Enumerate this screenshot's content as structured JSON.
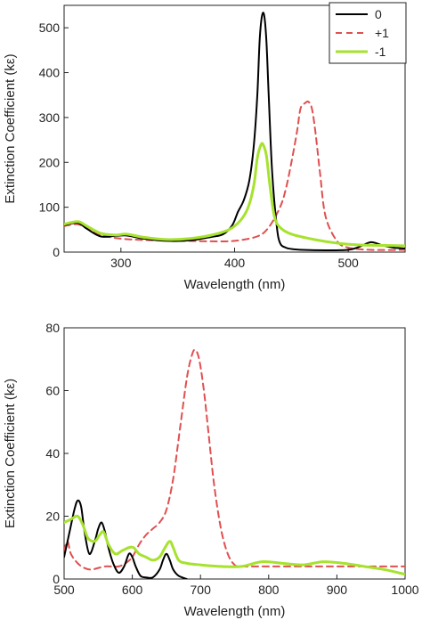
{
  "chart_data": [
    {
      "type": "line",
      "xlabel": "Wavelength (nm)",
      "ylabel": "Extinction Coefficient (kε)",
      "xlim": [
        250,
        550
      ],
      "ylim": [
        0,
        550
      ],
      "xticks": [
        300,
        400,
        500
      ],
      "yticks": [
        0,
        100,
        200,
        300,
        400,
        500
      ],
      "legend": "top-right",
      "grid": false,
      "series": [
        {
          "name": "0",
          "color": "#000000",
          "style": "solid",
          "x": [
            250,
            262,
            270,
            282,
            295,
            305,
            320,
            340,
            360,
            380,
            390,
            398,
            403,
            408,
            413,
            417,
            420,
            422,
            424,
            426,
            428,
            430,
            433,
            437,
            440,
            445,
            450,
            460,
            480,
            500,
            510,
            520,
            530,
            540,
            550
          ],
          "y": [
            60,
            65,
            52,
            35,
            36,
            37,
            30,
            25,
            26,
            34,
            40,
            60,
            90,
            115,
            160,
            240,
            350,
            470,
            525,
            528,
            470,
            350,
            180,
            60,
            20,
            10,
            7,
            5,
            4,
            5,
            12,
            22,
            15,
            10,
            8
          ]
        },
        {
          "name": "+1",
          "color": "#e05050",
          "style": "dashed",
          "x": [
            250,
            262,
            272,
            282,
            300,
            320,
            340,
            360,
            380,
            400,
            420,
            430,
            440,
            445,
            450,
            455,
            458,
            462,
            465,
            468,
            471,
            475,
            480,
            490,
            500,
            520,
            550
          ],
          "y": [
            58,
            62,
            50,
            38,
            30,
            27,
            26,
            25,
            24,
            25,
            35,
            55,
            100,
            140,
            200,
            270,
            320,
            332,
            335,
            320,
            270,
            180,
            80,
            25,
            10,
            5,
            5
          ]
        },
        {
          "name": "-1",
          "color": "#a6e22e",
          "style": "solid",
          "x": [
            250,
            262,
            270,
            282,
            295,
            305,
            320,
            340,
            360,
            380,
            395,
            405,
            412,
            417,
            420,
            423,
            425,
            428,
            431,
            435,
            440,
            450,
            470,
            490,
            510,
            530,
            550
          ],
          "y": [
            62,
            68,
            58,
            42,
            38,
            40,
            33,
            28,
            30,
            38,
            50,
            70,
            100,
            150,
            210,
            238,
            240,
            215,
            150,
            80,
            55,
            40,
            28,
            20,
            16,
            15,
            14
          ]
        }
      ]
    },
    {
      "type": "line",
      "xlabel": "Wavelength (nm)",
      "ylabel": "Extinction Coefficient (kε)",
      "xlim": [
        500,
        1000
      ],
      "ylim": [
        0,
        80
      ],
      "xticks": [
        500,
        600,
        700,
        800,
        900,
        1000
      ],
      "yticks": [
        0,
        20,
        40,
        60,
        80
      ],
      "grid": false,
      "series": [
        {
          "name": "0",
          "color": "#000000",
          "style": "solid",
          "x": [
            500,
            508,
            515,
            520,
            525,
            530,
            537,
            545,
            550,
            555,
            560,
            565,
            572,
            580,
            588,
            595,
            600,
            605,
            612,
            620,
            630,
            640,
            645,
            650,
            655,
            660,
            668,
            680
          ],
          "y": [
            7,
            15,
            22,
            25,
            23,
            15,
            8,
            12,
            16,
            18,
            15,
            10,
            5,
            2,
            4,
            8,
            7,
            4,
            1,
            0.5,
            0.5,
            3,
            6,
            8,
            6,
            3,
            1,
            0
          ]
        },
        {
          "name": "+1",
          "color": "#e05050",
          "style": "dashed",
          "x": [
            500,
            505,
            510,
            520,
            530,
            540,
            550,
            560,
            570,
            580,
            590,
            600,
            610,
            620,
            630,
            640,
            650,
            660,
            670,
            680,
            687,
            692,
            698,
            705,
            712,
            720,
            730,
            740,
            750,
            760,
            780,
            800,
            850,
            900,
            950,
            1000
          ],
          "y": [
            9,
            12,
            8,
            5,
            3.5,
            3,
            3.5,
            4,
            4,
            4,
            5,
            7,
            11,
            14,
            16,
            18,
            22,
            32,
            48,
            64,
            71,
            73,
            70,
            60,
            46,
            30,
            16,
            8,
            4.5,
            4,
            4,
            4,
            4,
            4,
            4,
            4
          ]
        },
        {
          "name": "-1",
          "color": "#a6e22e",
          "style": "solid",
          "x": [
            500,
            510,
            520,
            528,
            535,
            545,
            552,
            558,
            565,
            575,
            585,
            595,
            602,
            610,
            620,
            630,
            640,
            648,
            655,
            660,
            668,
            680,
            700,
            730,
            760,
            790,
            820,
            850,
            880,
            910,
            940,
            970,
            1000
          ],
          "y": [
            18,
            19,
            20,
            17,
            13,
            12,
            14,
            15,
            11,
            8,
            9,
            10,
            10,
            8,
            7,
            6,
            7,
            10,
            12,
            10,
            6,
            5,
            4.5,
            4,
            4,
            5.5,
            5,
            4.5,
            5.5,
            5,
            4,
            3,
            1.5
          ]
        }
      ]
    }
  ]
}
